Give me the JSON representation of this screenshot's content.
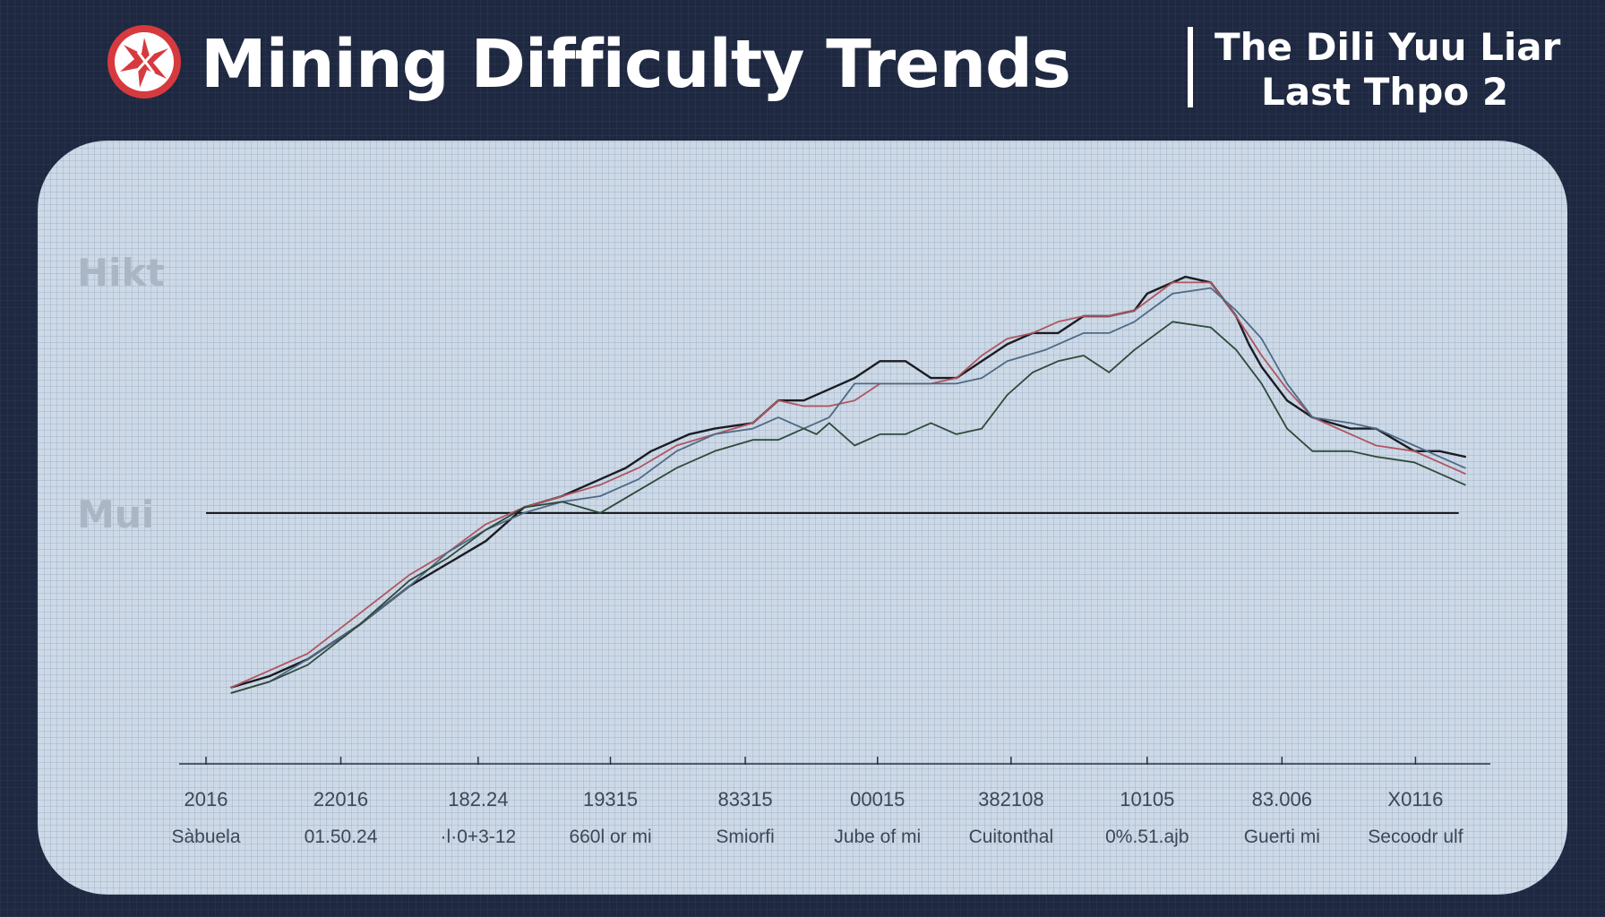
{
  "header": {
    "title": "Mining Difficulty Trends",
    "subtitle_line1": "The Dili Yuu Liar",
    "subtitle_line2": "Last Thpo 2",
    "logo_icon": "starburst-logo-icon"
  },
  "colors": {
    "background": "#1e2841",
    "panel": "#cdd9e6",
    "series_black": "#1a1c22",
    "series_red": "#b05560",
    "series_blue": "#4e6a86",
    "series_green": "#2e4a3a",
    "logo_red": "#d63a3f"
  },
  "chart_data": {
    "type": "line",
    "title": "Mining Difficulty Trends",
    "y_axis_labels": [
      {
        "label": "Hikt",
        "value": 90
      },
      {
        "label": "Mui",
        "value": 47
      }
    ],
    "reference_line": {
      "value": 47
    },
    "ylim": [
      0,
      100
    ],
    "xlim": [
      0,
      100
    ],
    "x_ticks": [
      {
        "x": 0,
        "label": "2016",
        "sublabel": "Sàbuela"
      },
      {
        "x": 10.6,
        "label": "22016",
        "sublabel": "01.50.24"
      },
      {
        "x": 21.4,
        "label": "182.24",
        "sublabel": "·l·0+3-12"
      },
      {
        "x": 31.8,
        "label": "19315",
        "sublabel": "660l or mi"
      },
      {
        "x": 42.4,
        "label": "83315",
        "sublabel": "Smiorfi"
      },
      {
        "x": 52.8,
        "label": "00015",
        "sublabel": "Jube of mi"
      },
      {
        "x": 63.3,
        "label": "382108",
        "sublabel": "Cuitonthal"
      },
      {
        "x": 74.0,
        "label": "10105",
        "sublabel": "0%.51.ajb"
      },
      {
        "x": 84.6,
        "label": "83.006",
        "sublabel": "Guerti mi"
      },
      {
        "x": 95.1,
        "label": "X0116",
        "sublabel": "Secoodr ulf"
      }
    ],
    "series": [
      {
        "name": "black",
        "x": [
          2,
          5,
          8,
          12,
          16,
          19,
          22,
          25,
          28,
          31,
          33,
          35,
          38,
          40,
          43,
          45,
          47,
          49,
          51,
          53,
          55,
          57,
          59,
          61,
          63,
          65,
          67,
          69,
          71,
          73,
          74,
          76,
          77,
          79,
          81,
          82,
          83,
          85,
          87,
          90,
          92,
          95,
          97,
          99
        ],
        "values": [
          16,
          18,
          21,
          27,
          34,
          38,
          42,
          48,
          50,
          53,
          55,
          58,
          61,
          62,
          63,
          67,
          67,
          69,
          71,
          74,
          74,
          71,
          71,
          74,
          77,
          79,
          79,
          82,
          82,
          83,
          86,
          88,
          89,
          88,
          82,
          77,
          73,
          67,
          64,
          62,
          62,
          58,
          58,
          57
        ]
      },
      {
        "name": "red",
        "x": [
          2,
          5,
          8,
          12,
          16,
          19,
          22,
          25,
          28,
          31,
          34,
          37,
          40,
          43,
          45,
          47,
          49,
          51,
          53,
          55,
          57,
          59,
          61,
          63,
          65,
          67,
          69,
          71,
          73,
          76,
          79,
          81,
          83,
          85,
          87,
          90,
          92,
          95,
          99
        ],
        "values": [
          16,
          19,
          22,
          29,
          36,
          40,
          45,
          48,
          50,
          52,
          55,
          59,
          61,
          63,
          67,
          66,
          66,
          67,
          70,
          70,
          70,
          71,
          75,
          78,
          79,
          81,
          82,
          82,
          83,
          88,
          88,
          82,
          75,
          69,
          64,
          61,
          59,
          58,
          54
        ]
      },
      {
        "name": "blue",
        "x": [
          2,
          5,
          8,
          12,
          16,
          19,
          22,
          25,
          28,
          31,
          34,
          37,
          40,
          43,
          45,
          47,
          49,
          51,
          53,
          55,
          57,
          59,
          61,
          63,
          66,
          69,
          71,
          73,
          76,
          79,
          81,
          83,
          85,
          87,
          90,
          92,
          95,
          99
        ],
        "values": [
          15,
          17,
          21,
          27,
          34,
          40,
          44,
          47,
          49,
          50,
          53,
          58,
          61,
          62,
          64,
          62,
          64,
          70,
          70,
          70,
          70,
          70,
          71,
          74,
          76,
          79,
          79,
          81,
          86,
          87,
          83,
          78,
          70,
          64,
          63,
          62,
          59,
          55
        ]
      },
      {
        "name": "green",
        "x": [
          2,
          5,
          8,
          12,
          16,
          19,
          22,
          25,
          28,
          31,
          34,
          37,
          40,
          43,
          45,
          47,
          48,
          49,
          51,
          53,
          55,
          57,
          59,
          61,
          63,
          65,
          67,
          69,
          71,
          73,
          76,
          79,
          81,
          83,
          85,
          87,
          90,
          92,
          95,
          99
        ],
        "values": [
          15,
          17,
          20,
          27,
          35,
          39,
          44,
          48,
          49,
          47,
          51,
          55,
          58,
          60,
          60,
          62,
          61,
          63,
          59,
          61,
          61,
          63,
          61,
          62,
          68,
          72,
          74,
          75,
          72,
          76,
          81,
          80,
          76,
          70,
          62,
          58,
          58,
          57,
          56,
          52
        ]
      }
    ]
  }
}
